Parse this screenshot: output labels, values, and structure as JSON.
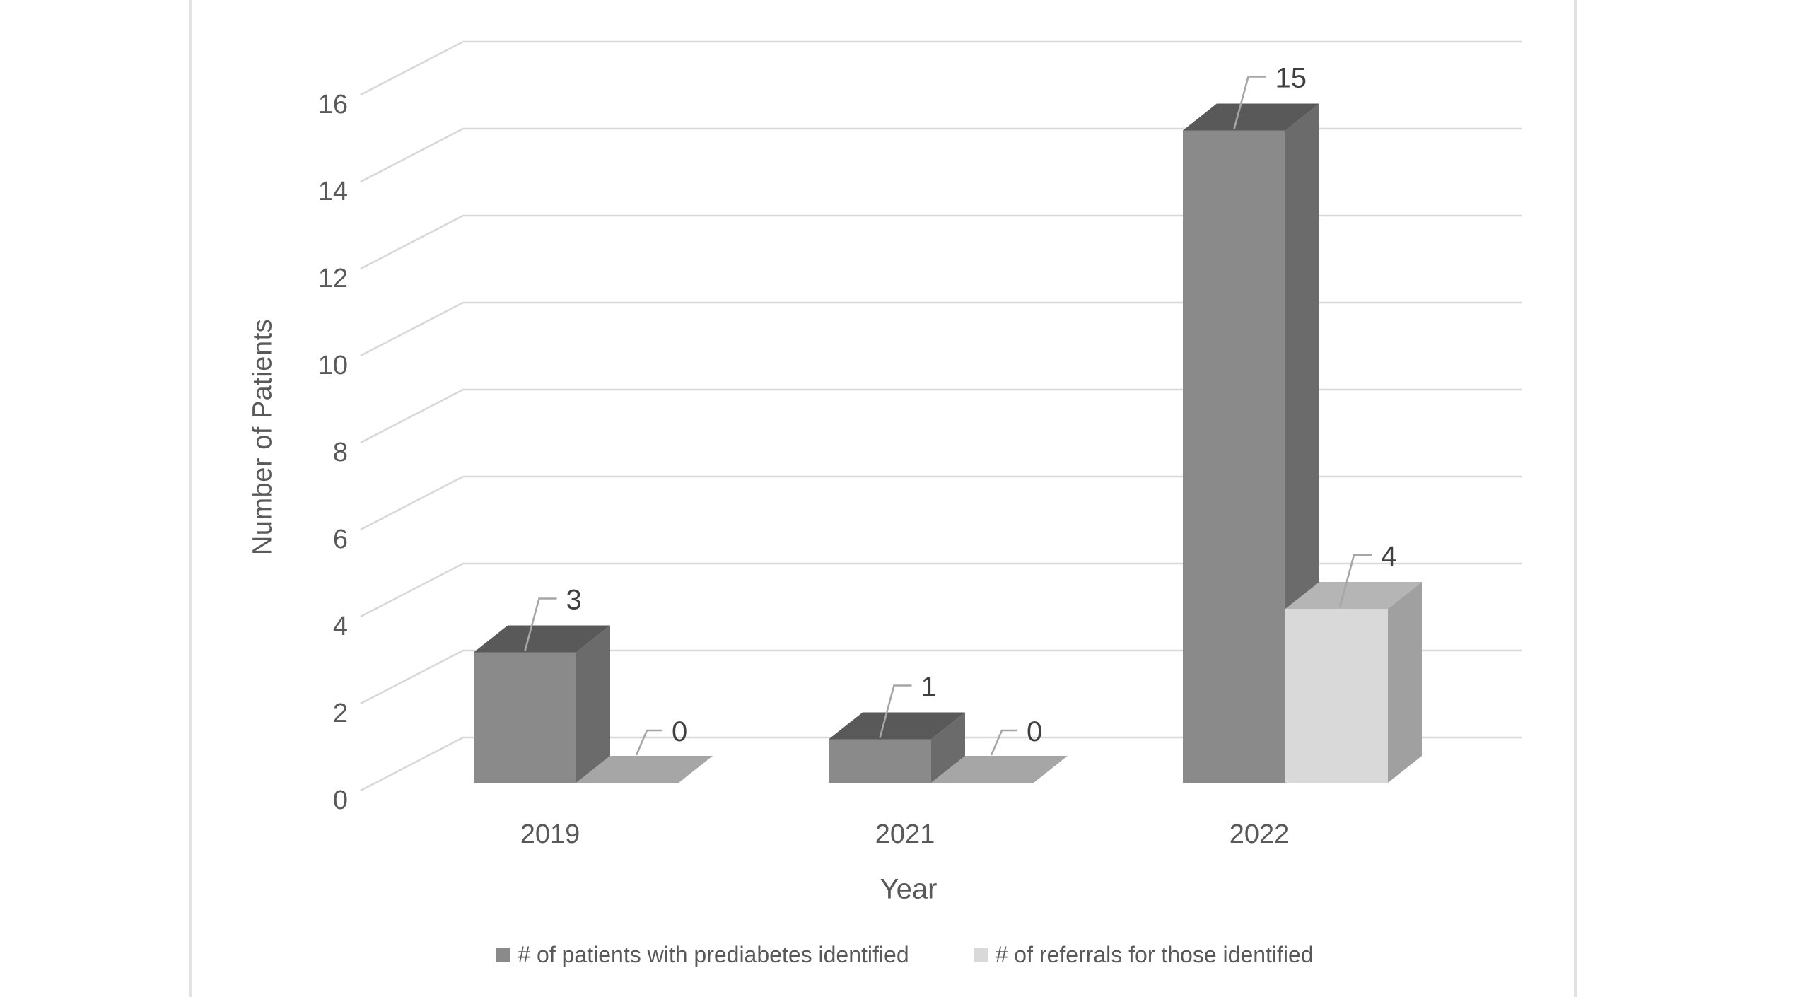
{
  "page": {
    "background": "#FFFFFF",
    "edge_color": "#E2E2E2"
  },
  "chart_data": {
    "type": "bar",
    "variant": "3d-clustered-column",
    "title": "",
    "xlabel": "Year",
    "ylabel": "Number of Patients",
    "categories": [
      "2019",
      "2021",
      "2022"
    ],
    "series": [
      {
        "name": "# of patients with prediabetes identified",
        "values": [
          3,
          1,
          15
        ],
        "color": "#8A8A8A",
        "top_color": "#595959",
        "side_color": "#6B6B6B"
      },
      {
        "name": "# of referrals for those identified",
        "values": [
          0,
          0,
          4
        ],
        "color": "#D9D9D9",
        "top_color": "#B5B5B5",
        "side_color": "#A0A0A0"
      }
    ],
    "data_labels": [
      [
        "3",
        "1",
        "15"
      ],
      [
        "0",
        "0",
        "4"
      ]
    ],
    "yticks": [
      0,
      2,
      4,
      6,
      8,
      10,
      12,
      14,
      16
    ],
    "ylim": [
      0,
      16
    ],
    "grid": true,
    "legend_position": "bottom",
    "gridline_color": "#D8D8D8",
    "zero_pad_color": "#A6A6A6",
    "leader_line_color": "#A6A6A6",
    "axis_text_color": "#595959",
    "data_label_color": "#3F3F3F"
  }
}
